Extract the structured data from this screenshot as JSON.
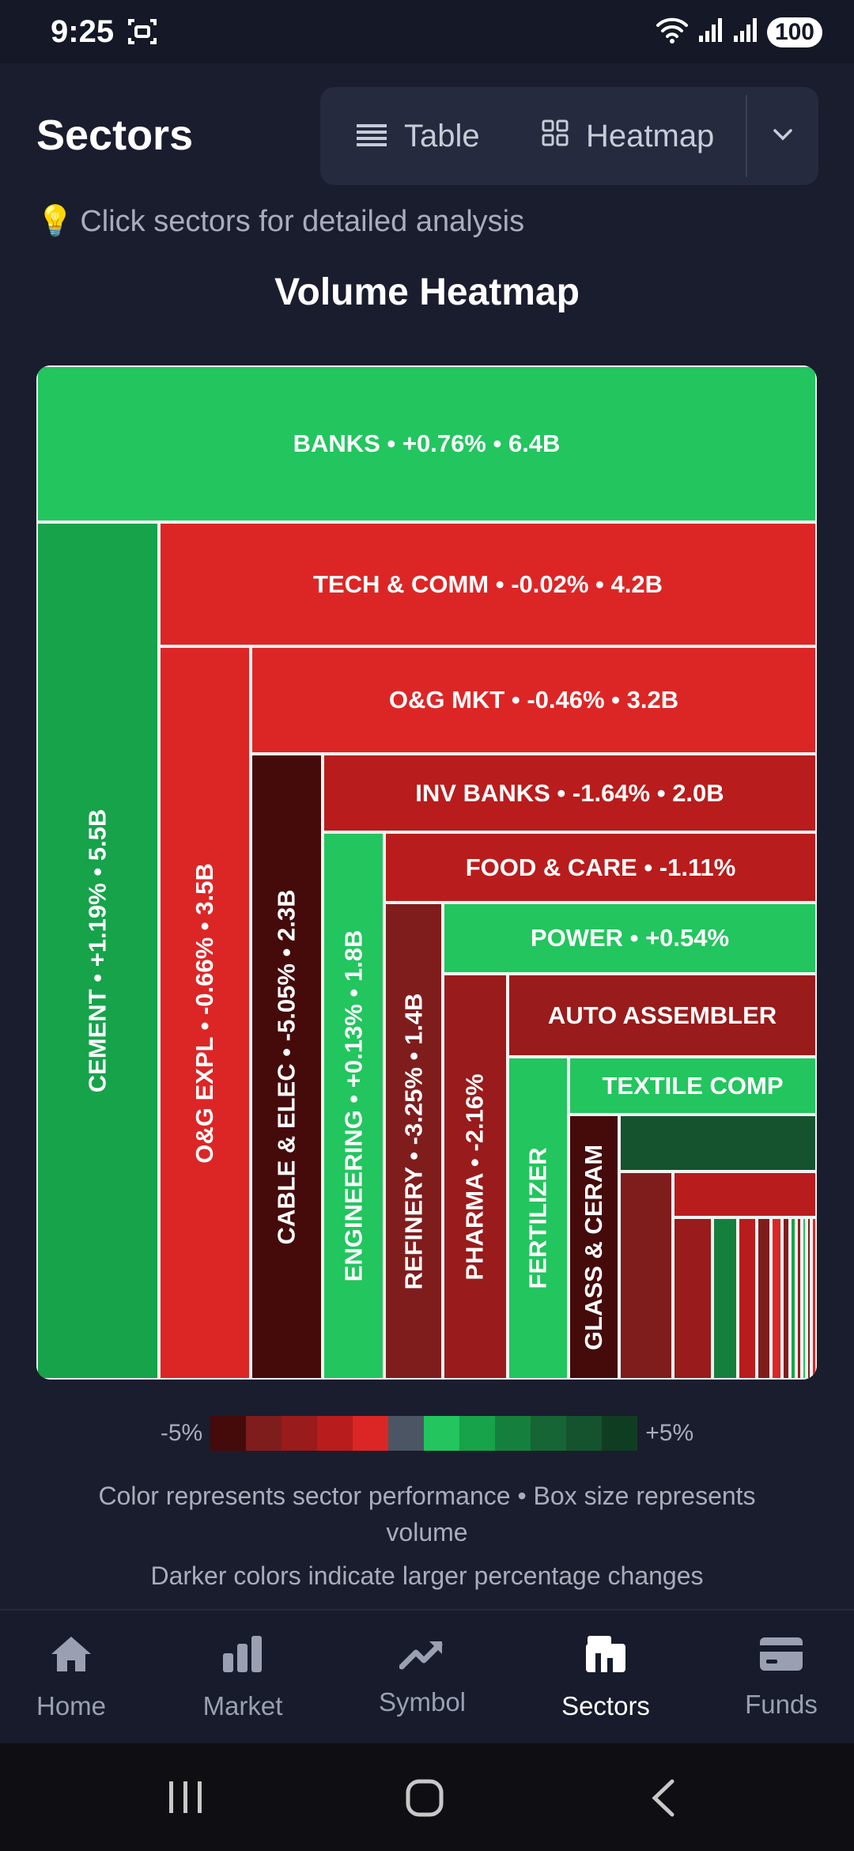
{
  "status_bar": {
    "time": "9:25",
    "battery": "100"
  },
  "header": {
    "title": "Sectors",
    "toggle": {
      "table_label": "Table",
      "heatmap_label": "Heatmap"
    }
  },
  "hint": {
    "emoji": "💡",
    "text": "Click sectors for detailed analysis"
  },
  "heatmap": {
    "title": "Volume Heatmap",
    "tiles": [
      {
        "label": "BANKS • +0.76% • 6.4B",
        "color": "#22c55e",
        "vertical": false,
        "pct": 0.76,
        "volume": "6.4B"
      },
      {
        "label": "CEMENT • +1.19% • 5.5B",
        "color": "#16a34a",
        "vertical": true,
        "pct": 1.19,
        "volume": "5.5B"
      },
      {
        "label": "TECH & COMM • -0.02% • 4.2B",
        "color": "#dc2626",
        "vertical": false,
        "pct": -0.02,
        "volume": "4.2B"
      },
      {
        "label": "O&G EXPL • -0.66% • 3.5B",
        "color": "#dc2626",
        "vertical": true,
        "pct": -0.66,
        "volume": "3.5B"
      },
      {
        "label": "O&G MKT • -0.46% • 3.2B",
        "color": "#dc2626",
        "vertical": false,
        "pct": -0.46,
        "volume": "3.2B"
      },
      {
        "label": "CABLE & ELEC • -5.05% • 2.3B",
        "color": "#450a0a",
        "vertical": true,
        "pct": -5.05,
        "volume": "2.3B"
      },
      {
        "label": "INV BANKS • -1.64% • 2.0B",
        "color": "#b91c1c",
        "vertical": false,
        "pct": -1.64,
        "volume": "2.0B"
      },
      {
        "label": "ENGINEERING • +0.13% • 1.8B",
        "color": "#22c55e",
        "vertical": true,
        "pct": 0.13,
        "volume": "1.8B"
      },
      {
        "label": "FOOD & CARE • -1.11%",
        "color": "#b91c1c",
        "vertical": false,
        "pct": -1.11
      },
      {
        "label": "REFINERY • -3.25% • 1.4B",
        "color": "#7f1d1d",
        "vertical": true,
        "pct": -3.25,
        "volume": "1.4B"
      },
      {
        "label": "POWER • +0.54%",
        "color": "#22c55e",
        "vertical": false,
        "pct": 0.54
      },
      {
        "label": "PHARMA • -2.16%",
        "color": "#991b1b",
        "vertical": true,
        "pct": -2.16
      },
      {
        "label": "AUTO ASSEMBLER",
        "color": "#991b1b",
        "vertical": false
      },
      {
        "label": "FERTILIZER",
        "color": "#22c55e",
        "vertical": true
      },
      {
        "label": "TEXTILE COMP",
        "color": "#22c55e",
        "vertical": false
      },
      {
        "label": "GLASS & CERAM",
        "color": "#450a0a",
        "vertical": true
      },
      {
        "label": "",
        "color": "#14532d"
      },
      {
        "label": "",
        "color": "#7f1d1d"
      },
      {
        "label": "",
        "color": "#b91c1c"
      },
      {
        "label": "",
        "color": "#991b1b"
      },
      {
        "label": "",
        "color": "#15803d"
      },
      {
        "label": "",
        "color": "#b91c1c"
      },
      {
        "label": "",
        "color": "#7f1d1d"
      },
      {
        "label": "",
        "color": "#dc2626"
      },
      {
        "label": "",
        "color": "#7f1d1d"
      },
      {
        "label": "",
        "color": "#16a34a"
      },
      {
        "label": "",
        "color": "#991b1b"
      },
      {
        "label": "",
        "color": "#22c55e"
      },
      {
        "label": "",
        "color": "#7f1d1d"
      },
      {
        "label": "",
        "color": "#dc2626"
      }
    ]
  },
  "legend": {
    "min_label": "-5%",
    "max_label": "+5%",
    "colors": [
      "#450a0a",
      "#7f1d1d",
      "#991b1b",
      "#b91c1c",
      "#dc2626",
      "#4b5563",
      "#22c55e",
      "#16a34a",
      "#15803d",
      "#166534",
      "#14532d",
      "#0f3d22"
    ]
  },
  "captions": {
    "line1": "Color represents sector performance • Box size represents volume",
    "line2": "Darker colors indicate larger percentage changes"
  },
  "bottom_nav": [
    {
      "label": "Home",
      "icon": "home-icon",
      "active": false
    },
    {
      "label": "Market",
      "icon": "bar-chart-icon",
      "active": false
    },
    {
      "label": "Symbol",
      "icon": "trend-up-icon",
      "active": false
    },
    {
      "label": "Sectors",
      "icon": "sectors-icon",
      "active": true
    },
    {
      "label": "Funds",
      "icon": "wallet-icon",
      "active": false
    }
  ]
}
